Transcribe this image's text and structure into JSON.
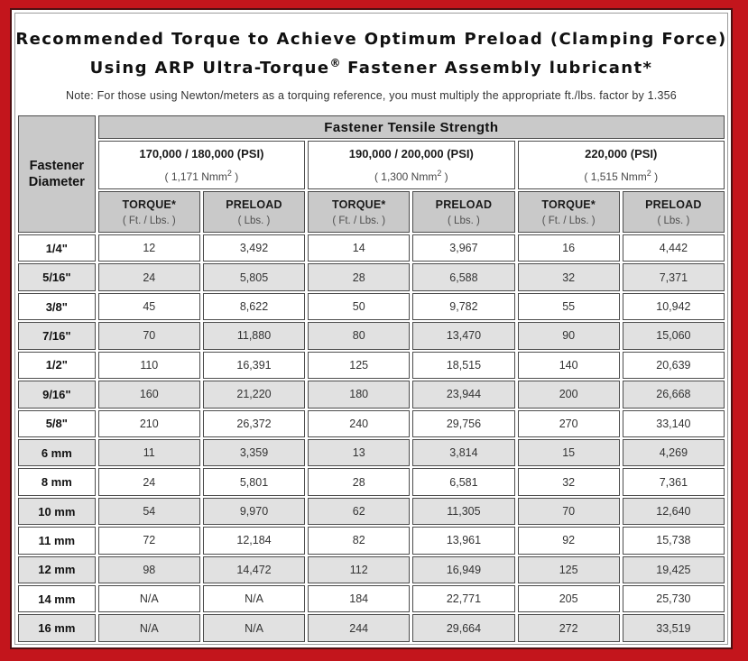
{
  "colors": {
    "border_red": "#c3151c",
    "frame_dark": "#4d1012",
    "header_gray": "#c9c9c9",
    "row_alt_gray": "#e1e1e1",
    "cell_border": "#4c4c4c"
  },
  "title": {
    "line1": "Recommended Torque to Achieve Optimum Preload (Clamping Force)",
    "line2_pre": "Using ARP Ultra-Torque",
    "line2_sup": "®",
    "line2_post": " Fastener Assembly lubricant*"
  },
  "note": "Note: For those using Newton/meters as a torquing reference, you must multiply the appropriate ft./lbs. factor by 1.356",
  "table": {
    "corner_header": "Fastener Diameter",
    "group_header": "Fastener Tensile Strength",
    "strength_groups": [
      {
        "psi": "170,000 / 180,000 (PSI)",
        "nmm_pre": "( 1,171 Nmm",
        "nmm_sup": "2",
        "nmm_post": " )"
      },
      {
        "psi": "190,000 / 200,000 (PSI)",
        "nmm_pre": "( 1,300 Nmm",
        "nmm_sup": "2",
        "nmm_post": " )"
      },
      {
        "psi": "220,000 (PSI)",
        "nmm_pre": "( 1,515 Nmm",
        "nmm_sup": "2",
        "nmm_post": " )"
      }
    ],
    "sub_headers": {
      "torque_label": "TORQUE*",
      "torque_unit": "( Ft. / Lbs. )",
      "preload_label": "PRELOAD",
      "preload_unit": "( Lbs. )"
    },
    "rows": [
      {
        "diameter": "1/4\"",
        "values": [
          "12",
          "3,492",
          "14",
          "3,967",
          "16",
          "4,442"
        ]
      },
      {
        "diameter": "5/16\"",
        "values": [
          "24",
          "5,805",
          "28",
          "6,588",
          "32",
          "7,371"
        ]
      },
      {
        "diameter": "3/8\"",
        "values": [
          "45",
          "8,622",
          "50",
          "9,782",
          "55",
          "10,942"
        ]
      },
      {
        "diameter": "7/16\"",
        "values": [
          "70",
          "11,880",
          "80",
          "13,470",
          "90",
          "15,060"
        ]
      },
      {
        "diameter": "1/2\"",
        "values": [
          "110",
          "16,391",
          "125",
          "18,515",
          "140",
          "20,639"
        ]
      },
      {
        "diameter": "9/16\"",
        "values": [
          "160",
          "21,220",
          "180",
          "23,944",
          "200",
          "26,668"
        ]
      },
      {
        "diameter": "5/8\"",
        "values": [
          "210",
          "26,372",
          "240",
          "29,756",
          "270",
          "33,140"
        ]
      },
      {
        "diameter": "6 mm",
        "values": [
          "11",
          "3,359",
          "13",
          "3,814",
          "15",
          "4,269"
        ]
      },
      {
        "diameter": "8 mm",
        "values": [
          "24",
          "5,801",
          "28",
          "6,581",
          "32",
          "7,361"
        ]
      },
      {
        "diameter": "10 mm",
        "values": [
          "54",
          "9,970",
          "62",
          "11,305",
          "70",
          "12,640"
        ]
      },
      {
        "diameter": "11 mm",
        "values": [
          "72",
          "12,184",
          "82",
          "13,961",
          "92",
          "15,738"
        ]
      },
      {
        "diameter": "12 mm",
        "values": [
          "98",
          "14,472",
          "112",
          "16,949",
          "125",
          "19,425"
        ]
      },
      {
        "diameter": "14 mm",
        "values": [
          "N/A",
          "N/A",
          "184",
          "22,771",
          "205",
          "25,730"
        ]
      },
      {
        "diameter": "16 mm",
        "values": [
          "N/A",
          "N/A",
          "244",
          "29,664",
          "272",
          "33,519"
        ]
      }
    ]
  }
}
